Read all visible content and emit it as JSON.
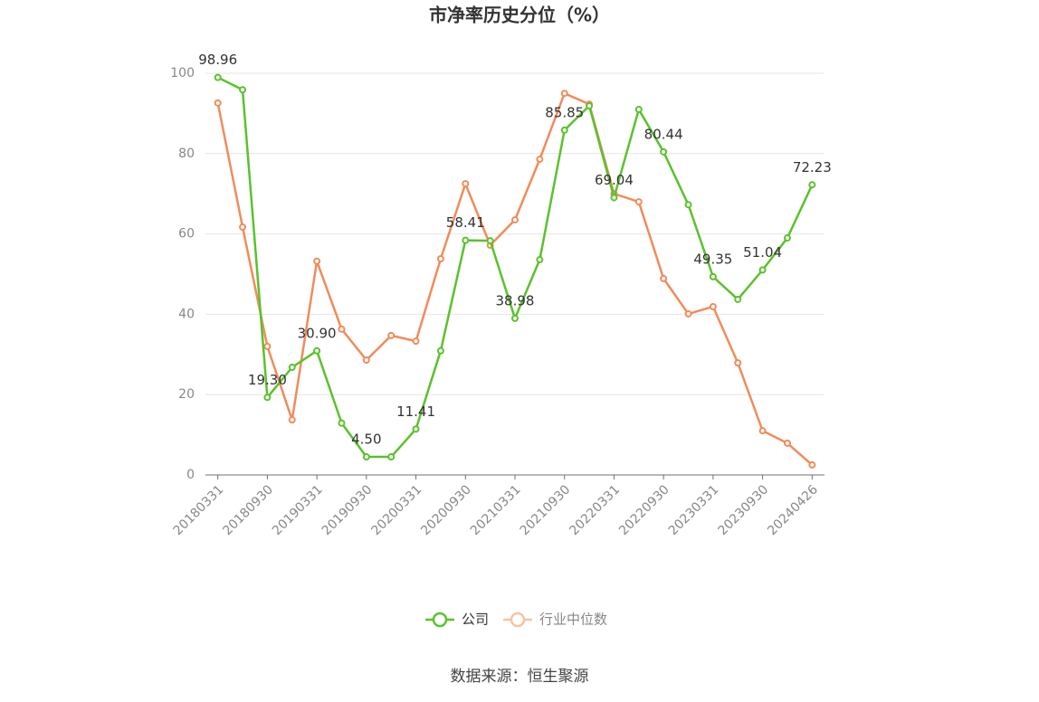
{
  "chart_data": {
    "type": "line",
    "title": "市净率历史分位（%）",
    "categories": [
      "20180331",
      null,
      "20180930",
      null,
      "20190331",
      null,
      "20190930",
      null,
      "20200331",
      null,
      "20200930",
      null,
      "20210331",
      null,
      "20210930",
      null,
      "20220331",
      null,
      "20220930",
      null,
      "20230331",
      null,
      "20230930",
      null,
      "20240426"
    ],
    "series": [
      {
        "name": "公司",
        "color": "#5ac22c",
        "values": [
          98.96,
          95.9,
          19.3,
          26.8,
          30.9,
          12.9,
          4.5,
          4.5,
          11.41,
          30.9,
          58.41,
          58.3,
          38.98,
          53.6,
          85.85,
          91.9,
          69.04,
          91.0,
          80.44,
          67.3,
          49.35,
          43.7,
          51.04,
          59.0,
          72.23
        ],
        "value_labels": [
          "98.96",
          null,
          "19.30",
          null,
          "30.90",
          null,
          "4.50",
          null,
          "11.41",
          null,
          "58.41",
          null,
          "38.98",
          null,
          "85.85",
          null,
          "69.04",
          null,
          "80.44",
          null,
          "49.35",
          null,
          "51.04",
          null,
          "72.23"
        ]
      },
      {
        "name": "行业中位数",
        "color": "#f08c5a",
        "values": [
          92.6,
          61.7,
          32.0,
          13.7,
          53.2,
          36.3,
          28.6,
          34.7,
          33.3,
          53.8,
          72.5,
          57.2,
          63.5,
          78.6,
          95.0,
          92.3,
          70.0,
          68.0,
          48.9,
          40.1,
          41.9,
          27.9,
          11.0,
          7.9,
          2.5
        ]
      }
    ],
    "ylim": [
      0,
      100
    ],
    "yticks": [
      0,
      20,
      40,
      60,
      80,
      100
    ],
    "grid": true,
    "legend": "bottom",
    "source": "数据来源：恒生聚源"
  }
}
